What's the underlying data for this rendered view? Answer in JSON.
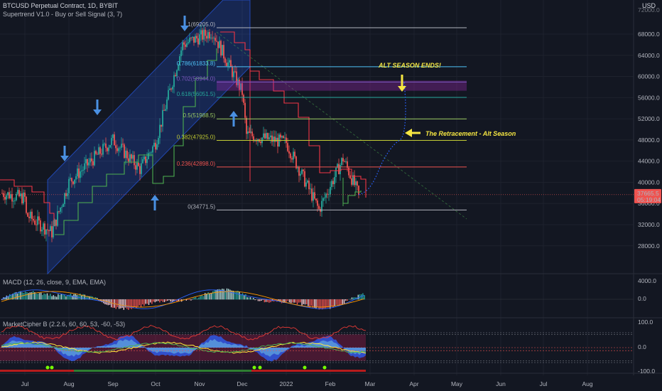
{
  "header": {
    "symbol_line": "BTCUSD Perpetual Contract, 1D, BYBIT",
    "indicator_line": "Supertrend V1.0 - Buy or Sell Signal (3, 7)",
    "currency": "USD"
  },
  "price_axis": {
    "ticks": [
      "68000.0",
      "64000.0",
      "60000.0",
      "56000.0",
      "52000.0",
      "48000.0",
      "44000.0",
      "40000.0",
      "36000.0",
      "32000.0",
      "28000.0"
    ],
    "current_price": "37665.5",
    "countdown": "05:19:04",
    "top_label": "72000.0"
  },
  "time_axis": {
    "ticks": [
      "Jul",
      "Aug",
      "Sep",
      "Oct",
      "Nov",
      "Dec",
      "2022",
      "Feb",
      "Mar",
      "Apr",
      "May",
      "Jun",
      "Jul",
      "Aug"
    ]
  },
  "fib_levels": [
    {
      "label": "1(69205.0)",
      "value": 69205.0,
      "color": "#b2b5be"
    },
    {
      "label": "0.786(61833.8)",
      "value": 61833.8,
      "color": "#4fc3f7"
    },
    {
      "label": "0.702(58944.0)",
      "value": 58944.0,
      "color": "#7e57c2"
    },
    {
      "label": "0.618(56051.5)",
      "value": 56051.5,
      "color": "#26a69a"
    },
    {
      "label": "0.5(51988.5)",
      "value": 51988.5,
      "color": "#9ccc65"
    },
    {
      "label": "0.382(47925.0)",
      "value": 47925.0,
      "color": "#c0ca33"
    },
    {
      "label": "0.236(42898.0)",
      "value": 42898.0,
      "color": "#ef5350"
    },
    {
      "label": "0(34771.5)",
      "value": 34771.5,
      "color": "#b2b5be"
    }
  ],
  "annotations": {
    "alt_season_ends": "ALT SEASON ENDS!",
    "retracement": "The Retracement - Alt Season"
  },
  "macd": {
    "title": "MACD (12, 26, close, 9, EMA, EMA)",
    "ticks": [
      "4000.0",
      "0.0"
    ]
  },
  "cipher": {
    "title": "MarketCipher B (2.2.6, 60, 60, 53, -60, -53)",
    "ticks": [
      "100.0",
      "0.0",
      "-100.0"
    ]
  },
  "colors": {
    "bg": "#131722",
    "up": "#26a69a",
    "down": "#ef5350",
    "channel": "#2962ff",
    "supertrend_up": "#4caf50",
    "supertrend_down": "#f23645",
    "arrow_blue": "#4a90e2",
    "annotation": "#f5e642",
    "projection": "#2962ff"
  },
  "chart_data": {
    "type": "candlestick",
    "title": "BTCUSD Perpetual Contract, 1D, BYBIT",
    "ylim": [
      25000,
      72000
    ],
    "x_range": [
      "2021-06-15",
      "2022-08-31"
    ],
    "closes_monthly_approx": [
      {
        "date": "2021-07-01",
        "value": 34000
      },
      {
        "date": "2021-07-20",
        "value": 30500
      },
      {
        "date": "2021-08-01",
        "value": 40000
      },
      {
        "date": "2021-09-01",
        "value": 48000
      },
      {
        "date": "2021-09-20",
        "value": 42500
      },
      {
        "date": "2021-10-01",
        "value": 47500
      },
      {
        "date": "2021-10-20",
        "value": 66000
      },
      {
        "date": "2021-11-10",
        "value": 68500
      },
      {
        "date": "2021-12-01",
        "value": 57000
      },
      {
        "date": "2021-12-04",
        "value": 49000
      },
      {
        "date": "2022-01-01",
        "value": 47500
      },
      {
        "date": "2022-01-24",
        "value": 34800
      },
      {
        "date": "2022-02-10",
        "value": 44500
      },
      {
        "date": "2022-02-21",
        "value": 37665.5
      }
    ],
    "projection": [
      {
        "date": "2022-02-21",
        "value": 37665.5
      },
      {
        "date": "2022-03-10",
        "value": 44000
      },
      {
        "date": "2022-03-22",
        "value": 48000
      },
      {
        "date": "2022-03-25",
        "value": 58900
      }
    ]
  }
}
